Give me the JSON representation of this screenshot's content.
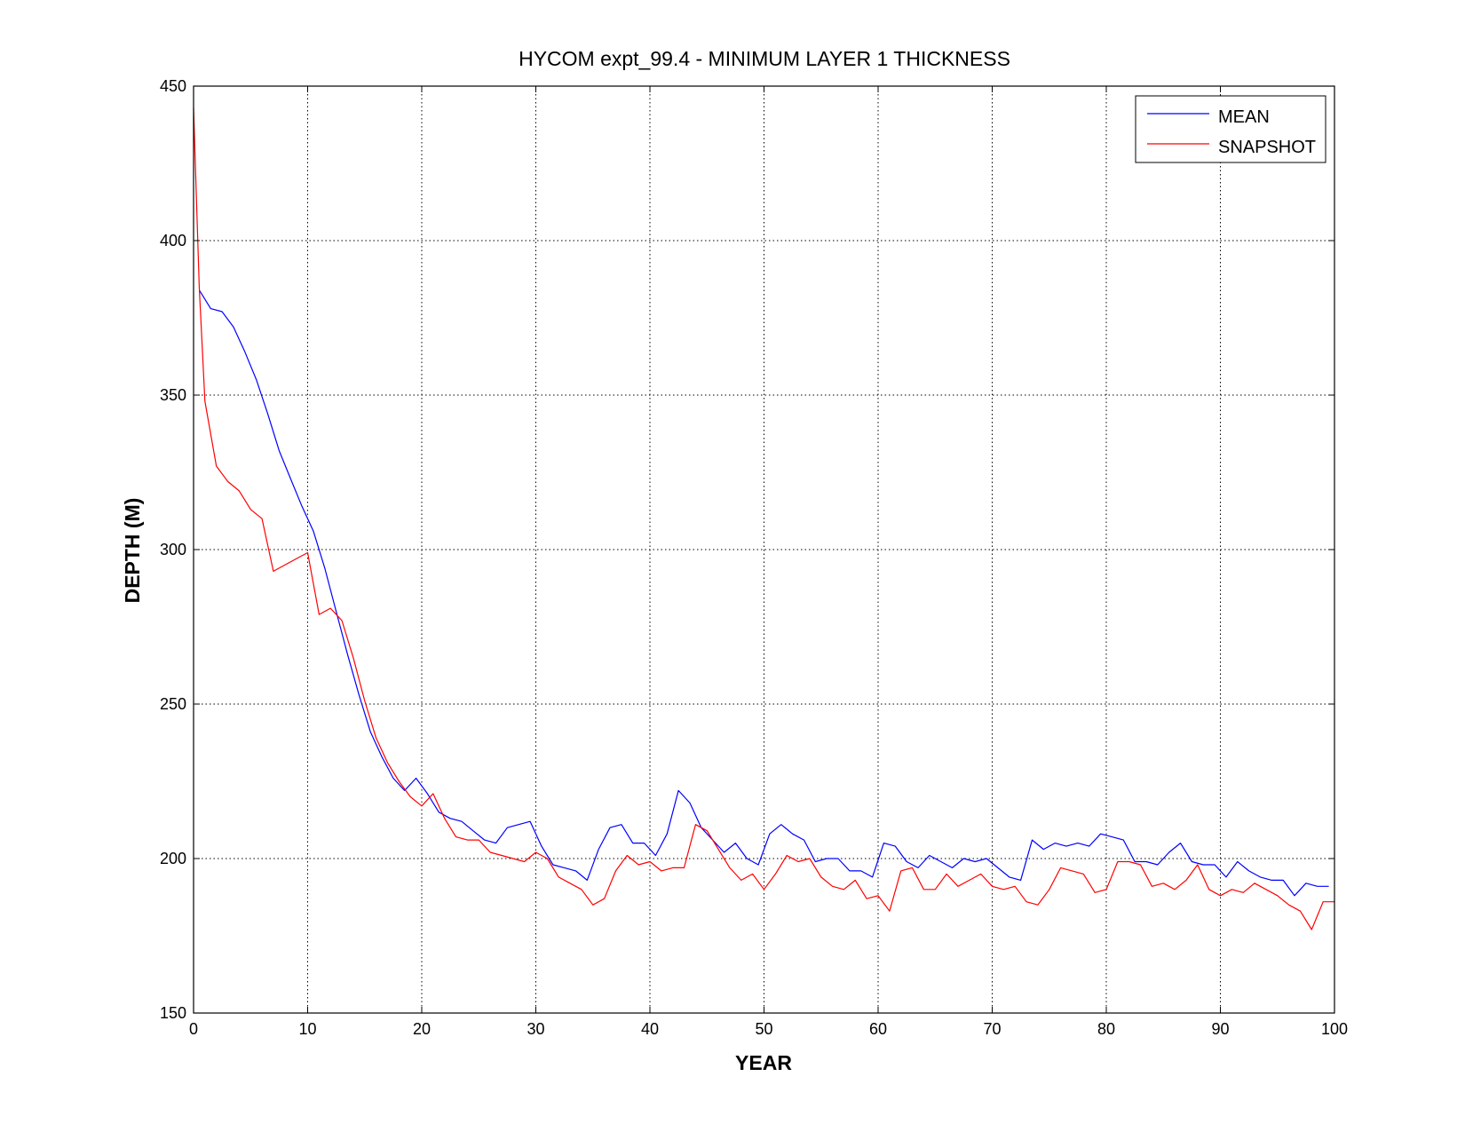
{
  "chart_data": {
    "type": "line",
    "title": "HYCOM expt_99.4 - MINIMUM LAYER 1 THICKNESS",
    "xlabel": "YEAR",
    "ylabel": "DEPTH (M)",
    "xlim": [
      0,
      100
    ],
    "ylim": [
      150,
      450
    ],
    "xticks": [
      0,
      10,
      20,
      30,
      40,
      50,
      60,
      70,
      80,
      90,
      100
    ],
    "yticks": [
      150,
      200,
      250,
      300,
      350,
      400,
      450
    ],
    "grid": true,
    "legend_position": "top-right",
    "series": [
      {
        "name": "MEAN",
        "color": "#0000ff",
        "x": [
          0.5,
          1.5,
          2.5,
          3.5,
          4.5,
          5.5,
          6.5,
          7.5,
          8.5,
          9.5,
          10.5,
          11.5,
          12.5,
          13.5,
          14.5,
          15.5,
          16.5,
          17.5,
          18.5,
          19.5,
          20.5,
          21.5,
          22.5,
          23.5,
          24.5,
          25.5,
          26.5,
          27.5,
          28.5,
          29.5,
          30.5,
          31.5,
          32.5,
          33.5,
          34.5,
          35.5,
          36.5,
          37.5,
          38.5,
          39.5,
          40.5,
          41.5,
          42.5,
          43.5,
          44.5,
          45.5,
          46.5,
          47.5,
          48.5,
          49.5,
          50.5,
          51.5,
          52.5,
          53.5,
          54.5,
          55.5,
          56.5,
          57.5,
          58.5,
          59.5,
          60.5,
          61.5,
          62.5,
          63.5,
          64.5,
          65.5,
          66.5,
          67.5,
          68.5,
          69.5,
          70.5,
          71.5,
          72.5,
          73.5,
          74.5,
          75.5,
          76.5,
          77.5,
          78.5,
          79.5,
          80.5,
          81.5,
          82.5,
          83.5,
          84.5,
          85.5,
          86.5,
          87.5,
          88.5,
          89.5,
          90.5,
          91.5,
          92.5,
          93.5,
          94.5,
          95.5,
          96.5,
          97.5,
          98.5,
          99.5
        ],
        "y": [
          384,
          378,
          377,
          372,
          364,
          355,
          344,
          332,
          323,
          314,
          306,
          294,
          280,
          266,
          253,
          241,
          233,
          226,
          222,
          226,
          221,
          215,
          213,
          212,
          209,
          206,
          205,
          210,
          211,
          212,
          204,
          198,
          197,
          196,
          193,
          203,
          210,
          211,
          205,
          205,
          201,
          208,
          222,
          218,
          210,
          206,
          202,
          205,
          200,
          198,
          208,
          211,
          208,
          206,
          199,
          200,
          200,
          196,
          196,
          194,
          205,
          204,
          199,
          197,
          201,
          199,
          197,
          200,
          199,
          200,
          197,
          194,
          193,
          206,
          203,
          205,
          204,
          205,
          204,
          208,
          207,
          206,
          199,
          199,
          198,
          202,
          205,
          199,
          198,
          198,
          194,
          199,
          196,
          194,
          193,
          193,
          188,
          192,
          191,
          191
        ]
      },
      {
        "name": "SNAPSHOT",
        "color": "#ff0000",
        "x": [
          0,
          0.5,
          1,
          2,
          3,
          4,
          5,
          6,
          7,
          8,
          9,
          10,
          11,
          12,
          13,
          14,
          15,
          16,
          17,
          18,
          19,
          20,
          21,
          22,
          23,
          24,
          25,
          26,
          27,
          28,
          29,
          30,
          31,
          32,
          33,
          34,
          35,
          36,
          37,
          38,
          39,
          40,
          41,
          42,
          43,
          44,
          45,
          46,
          47,
          48,
          49,
          50,
          51,
          52,
          53,
          54,
          55,
          56,
          57,
          58,
          59,
          60,
          61,
          62,
          63,
          64,
          65,
          66,
          67,
          68,
          69,
          70,
          71,
          72,
          73,
          74,
          75,
          76,
          77,
          78,
          79,
          80,
          81,
          82,
          83,
          84,
          85,
          86,
          87,
          88,
          89,
          90,
          91,
          92,
          93,
          94,
          95,
          96,
          97,
          98,
          99,
          100
        ],
        "y": [
          443,
          385,
          348,
          327,
          322,
          319,
          313,
          310,
          293,
          295,
          297,
          299,
          279,
          281,
          277,
          265,
          251,
          239,
          231,
          225,
          220,
          217,
          221,
          213,
          207,
          206,
          206,
          202,
          201,
          200,
          199,
          202,
          200,
          194,
          192,
          190,
          185,
          187,
          196,
          201,
          198,
          199,
          196,
          197,
          197,
          211,
          209,
          203,
          197,
          193,
          195,
          190,
          195,
          201,
          199,
          200,
          194,
          191,
          190,
          193,
          187,
          188,
          183,
          196,
          197,
          190,
          190,
          195,
          191,
          193,
          195,
          191,
          190,
          191,
          186,
          185,
          190,
          197,
          196,
          195,
          189,
          190,
          199,
          199,
          198,
          191,
          192,
          190,
          193,
          198,
          190,
          188,
          190,
          189,
          192,
          190,
          188,
          185,
          183,
          177,
          186,
          186
        ]
      }
    ]
  }
}
